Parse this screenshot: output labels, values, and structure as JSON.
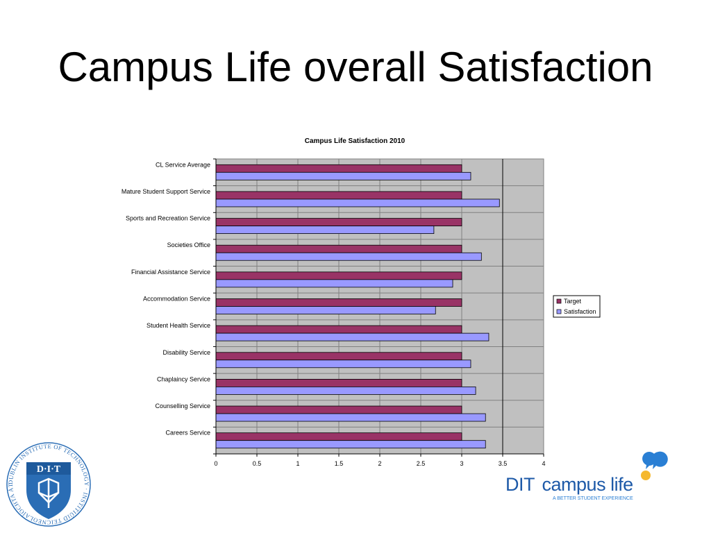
{
  "slide": {
    "title": "Campus Life overall Satisfaction"
  },
  "logos": {
    "dit_crest_text": "DUBLIN INSTITUTE OF TECHNOLOGY · INSTITIÚID TEICNEOLAÍOCHTA ÁTHA CLIATH",
    "dit_mark": "D·I·T",
    "campus_dit": "DIT",
    "campus_life": "campus life",
    "campus_tagline": "A BETTER STUDENT EXPERIENCE"
  },
  "chart_data": {
    "type": "bar",
    "orientation": "horizontal",
    "title": "Campus Life Satisfaction 2010",
    "xlabel": "",
    "ylabel": "",
    "xlim": [
      0,
      4
    ],
    "x_ticks": [
      "0",
      "0.5",
      "1",
      "1.5",
      "2",
      "2.5",
      "3",
      "3.5",
      "4"
    ],
    "grid": true,
    "legend_position": "right",
    "categories": [
      "CL Service Average",
      "Mature Student Support Service",
      "Sports and Recreation Service",
      "Societies Office",
      "Financial Assistance Service",
      "Accommodation Service",
      "Student Health Service",
      "Disability Service",
      "Chaplaincy Service",
      "Counselling Service",
      "Careers Service"
    ],
    "series": [
      {
        "name": "Target",
        "color": "#993366",
        "values": [
          3,
          3,
          3,
          3,
          3,
          3,
          3,
          3,
          3,
          3,
          3
        ]
      },
      {
        "name": "Satisfaction",
        "color": "#9999ff",
        "values": [
          3.11,
          3.46,
          2.66,
          3.24,
          2.89,
          2.68,
          3.33,
          3.11,
          3.17,
          3.29,
          3.29
        ]
      }
    ],
    "reference_line": 3.5,
    "plot_background": "#c0c0c0"
  }
}
